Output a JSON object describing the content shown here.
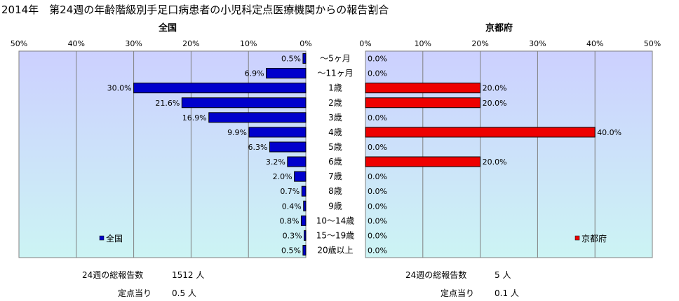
{
  "title": "2014年　第24週の年齢階級別手足口病患者の小児科定点医療機関からの報告割合",
  "chart_data": [
    {
      "type": "bar",
      "orientation": "horizontal",
      "title": "全国",
      "categories": [
        "～5ヶ月",
        "～11ヶ月",
        "1歳",
        "2歳",
        "3歳",
        "4歳",
        "5歳",
        "6歳",
        "7歳",
        "8歳",
        "9歳",
        "10～14歳",
        "15～19歳",
        "20歳以上"
      ],
      "series": [
        {
          "name": "全国",
          "values": [
            0.5,
            6.9,
            30.0,
            21.6,
            16.9,
            9.9,
            6.3,
            3.2,
            2.0,
            0.7,
            0.4,
            0.8,
            0.3,
            0.5
          ]
        }
      ],
      "value_labels": [
        "0.5%",
        "6.9%",
        "30.0%",
        "21.6%",
        "16.9%",
        "9.9%",
        "6.3%",
        "3.2%",
        "2.0%",
        "0.7%",
        "0.4%",
        "0.8%",
        "0.3%",
        "0.5%"
      ],
      "xlim": [
        0,
        50
      ],
      "x_reversed": true,
      "ticks": [
        "50%",
        "40%",
        "30%",
        "20%",
        "10%",
        "0%"
      ],
      "bar_color": "#0000cc",
      "legend_placement": "bottom-left",
      "grid": true
    },
    {
      "type": "bar",
      "orientation": "horizontal",
      "title": "京都府",
      "categories": [
        "～5ヶ月",
        "～11ヶ月",
        "1歳",
        "2歳",
        "3歳",
        "4歳",
        "5歳",
        "6歳",
        "7歳",
        "8歳",
        "9歳",
        "10～14歳",
        "15～19歳",
        "20歳以上"
      ],
      "series": [
        {
          "name": "京都府",
          "values": [
            0,
            0,
            20,
            20,
            0,
            40,
            0,
            20,
            0,
            0,
            0,
            0,
            0,
            0
          ]
        }
      ],
      "value_labels": [
        "0.0%",
        "0.0%",
        "20.0%",
        "20.0%",
        "0.0%",
        "40.0%",
        "0.0%",
        "20.0%",
        "0.0%",
        "0.0%",
        "0.0%",
        "0.0%",
        "0.0%",
        "0.0%"
      ],
      "xlim": [
        0,
        50
      ],
      "ticks": [
        "0%",
        "10%",
        "20%",
        "30%",
        "40%",
        "50%"
      ],
      "bar_color": "#ee0000",
      "legend_placement": "bottom-right",
      "grid": true
    }
  ],
  "stats": {
    "national_total_label": "24週の総報告数",
    "national_total_value": "1512 人",
    "national_per_label": "定点当り",
    "national_per_value": "0.5 人",
    "kyoto_total_label": "24週の総報告数",
    "kyoto_total_value": "5 人",
    "kyoto_per_label": "定点当り",
    "kyoto_per_value": "0.1 人"
  }
}
